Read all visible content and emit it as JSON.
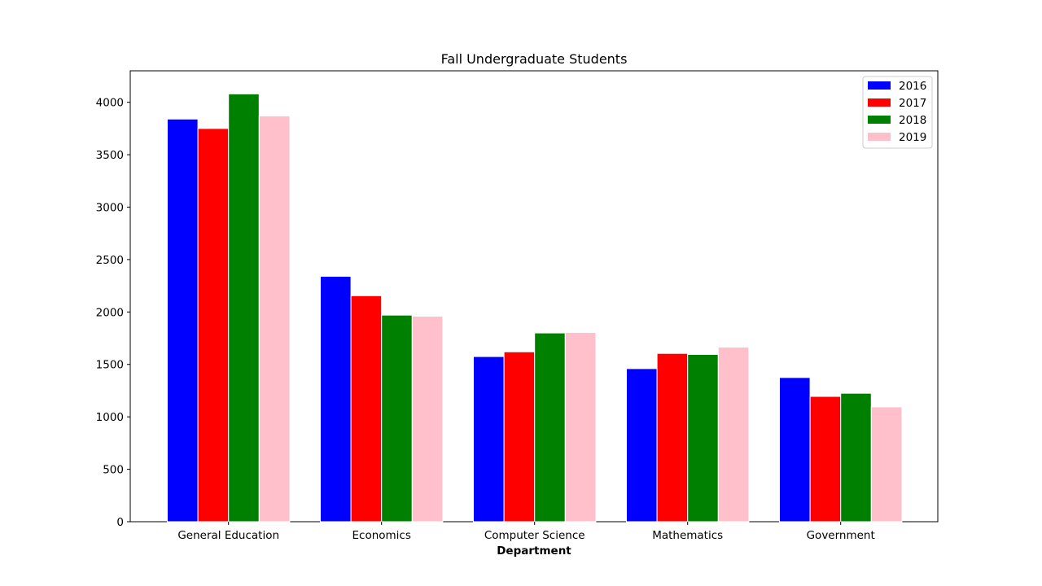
{
  "chart_data": {
    "type": "bar",
    "title": "Fall Undergraduate Students",
    "xlabel": "Department",
    "ylabel": "",
    "categories": [
      "General Education",
      "Economics",
      "Computer Science",
      "Mathematics",
      "Government"
    ],
    "series": [
      {
        "name": "2016",
        "color": "#0000ff",
        "values": [
          3840,
          2340,
          1575,
          1460,
          1375
        ]
      },
      {
        "name": "2017",
        "color": "#ff0000",
        "values": [
          3750,
          2155,
          1620,
          1605,
          1195
        ]
      },
      {
        "name": "2018",
        "color": "#008000",
        "values": [
          4080,
          1970,
          1800,
          1595,
          1225
        ]
      },
      {
        "name": "2019",
        "color": "#ffc0cb",
        "values": [
          3870,
          1960,
          1805,
          1665,
          1095
        ]
      }
    ],
    "ylim": [
      0,
      4300
    ],
    "yticks": [
      0,
      500,
      1000,
      1500,
      2000,
      2500,
      3000,
      3500,
      4000
    ],
    "grid": false,
    "legend_position": "top-right"
  }
}
